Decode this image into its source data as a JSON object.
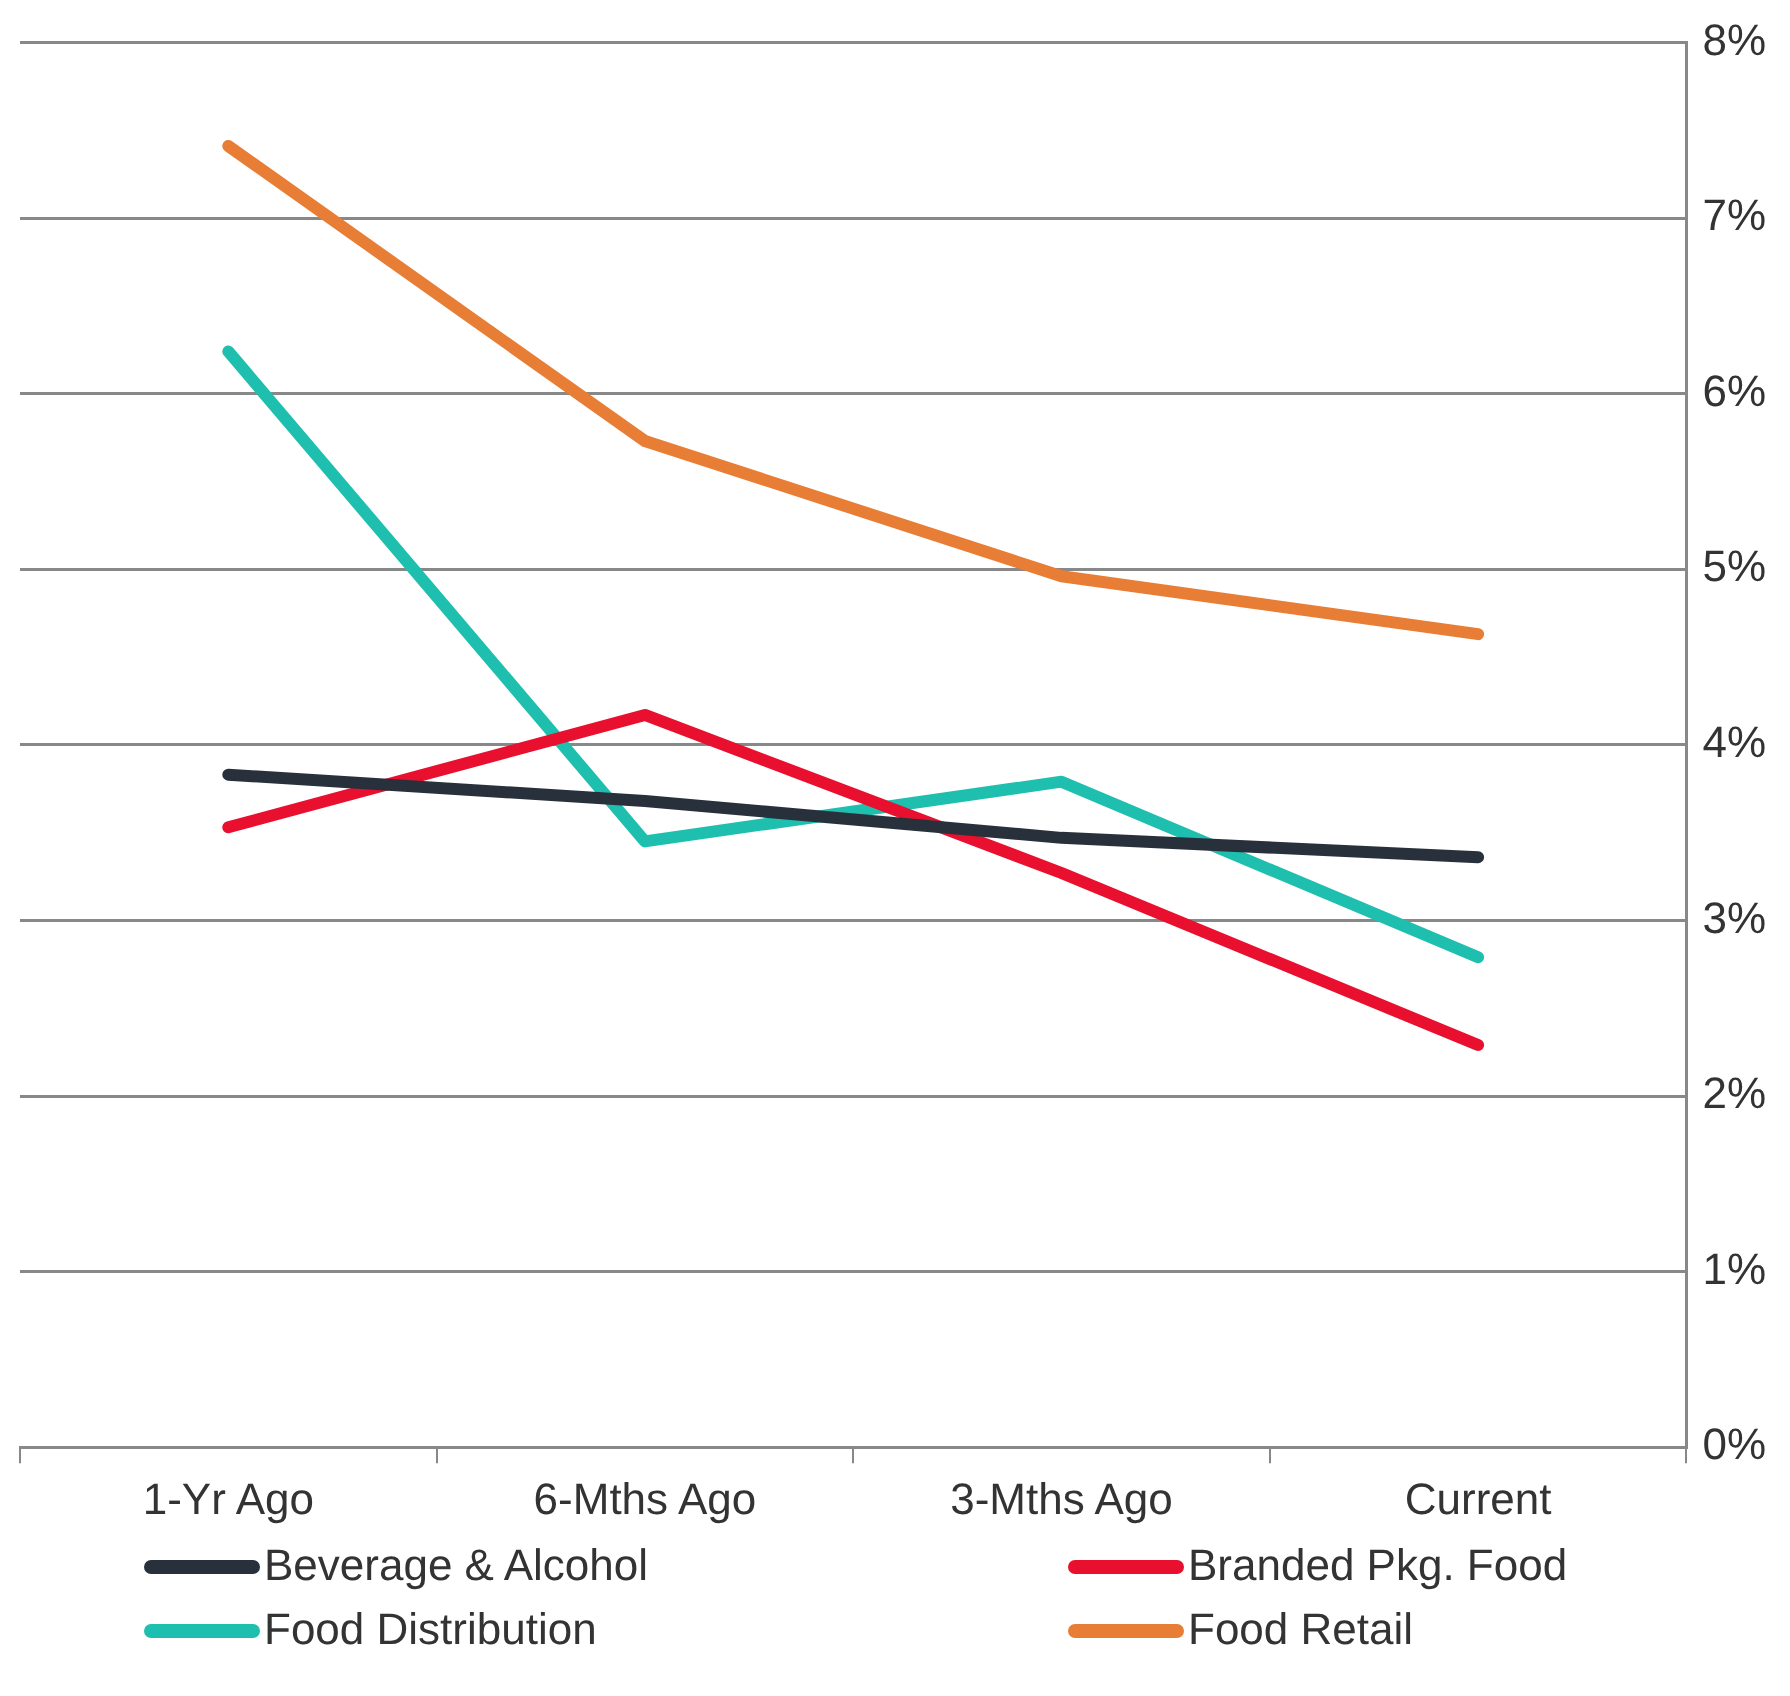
{
  "chart_data": {
    "type": "line",
    "categories": [
      "1-Yr Ago",
      "6-Mths Ago",
      "3-Mths Ago",
      "Current"
    ],
    "series": [
      {
        "name": "Beverage & Alcohol",
        "color": "#28313b",
        "values": [
          3.83,
          3.68,
          3.47,
          3.36
        ]
      },
      {
        "name": "Branded Pkg. Food",
        "color": "#e8102e",
        "values": [
          3.53,
          4.17,
          3.27,
          2.29
        ]
      },
      {
        "name": "Food Distribution",
        "color": "#1fbfaf",
        "values": [
          6.24,
          3.45,
          3.79,
          2.79
        ]
      },
      {
        "name": "Food Retail",
        "color": "#e87d35",
        "values": [
          7.41,
          5.73,
          4.96,
          4.63
        ]
      }
    ],
    "ylim": [
      0,
      8
    ],
    "yticks": [
      {
        "value": 0,
        "label": "0%"
      },
      {
        "value": 1,
        "label": "1%"
      },
      {
        "value": 2,
        "label": "2%"
      },
      {
        "value": 3,
        "label": "3%"
      },
      {
        "value": 4,
        "label": "4%"
      },
      {
        "value": 5,
        "label": "5%"
      },
      {
        "value": 6,
        "label": "6%"
      },
      {
        "value": 7,
        "label": "7%"
      },
      {
        "value": 8,
        "label": "8%"
      }
    ],
    "grid": "y",
    "legend": "bottom",
    "marker": "none",
    "line_style": "solid"
  }
}
